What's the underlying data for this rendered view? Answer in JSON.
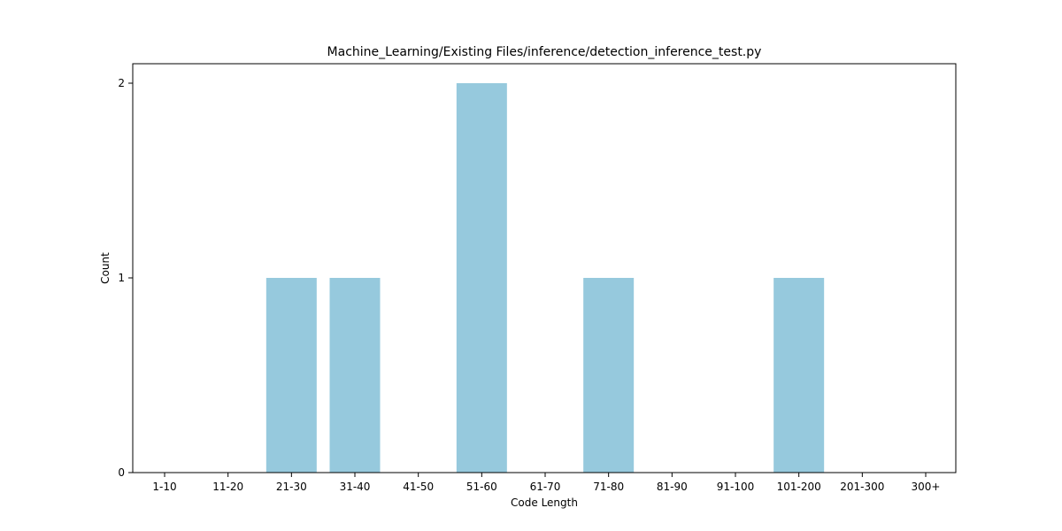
{
  "chart_data": {
    "type": "bar",
    "title": "Machine_Learning/Existing Files/inference/detection_inference_test.py",
    "xlabel": "Code Length",
    "ylabel": "Count",
    "categories": [
      "1-10",
      "11-20",
      "21-30",
      "31-40",
      "41-50",
      "51-60",
      "61-70",
      "71-80",
      "81-90",
      "91-100",
      "101-200",
      "201-300",
      "300+"
    ],
    "values": [
      0,
      0,
      1,
      1,
      0,
      2,
      0,
      1,
      0,
      0,
      1,
      0,
      0
    ],
    "yticks": [
      0,
      1,
      2
    ],
    "ylim": [
      0,
      2.1
    ],
    "grid": false,
    "bar_color": "#96c9dd"
  }
}
